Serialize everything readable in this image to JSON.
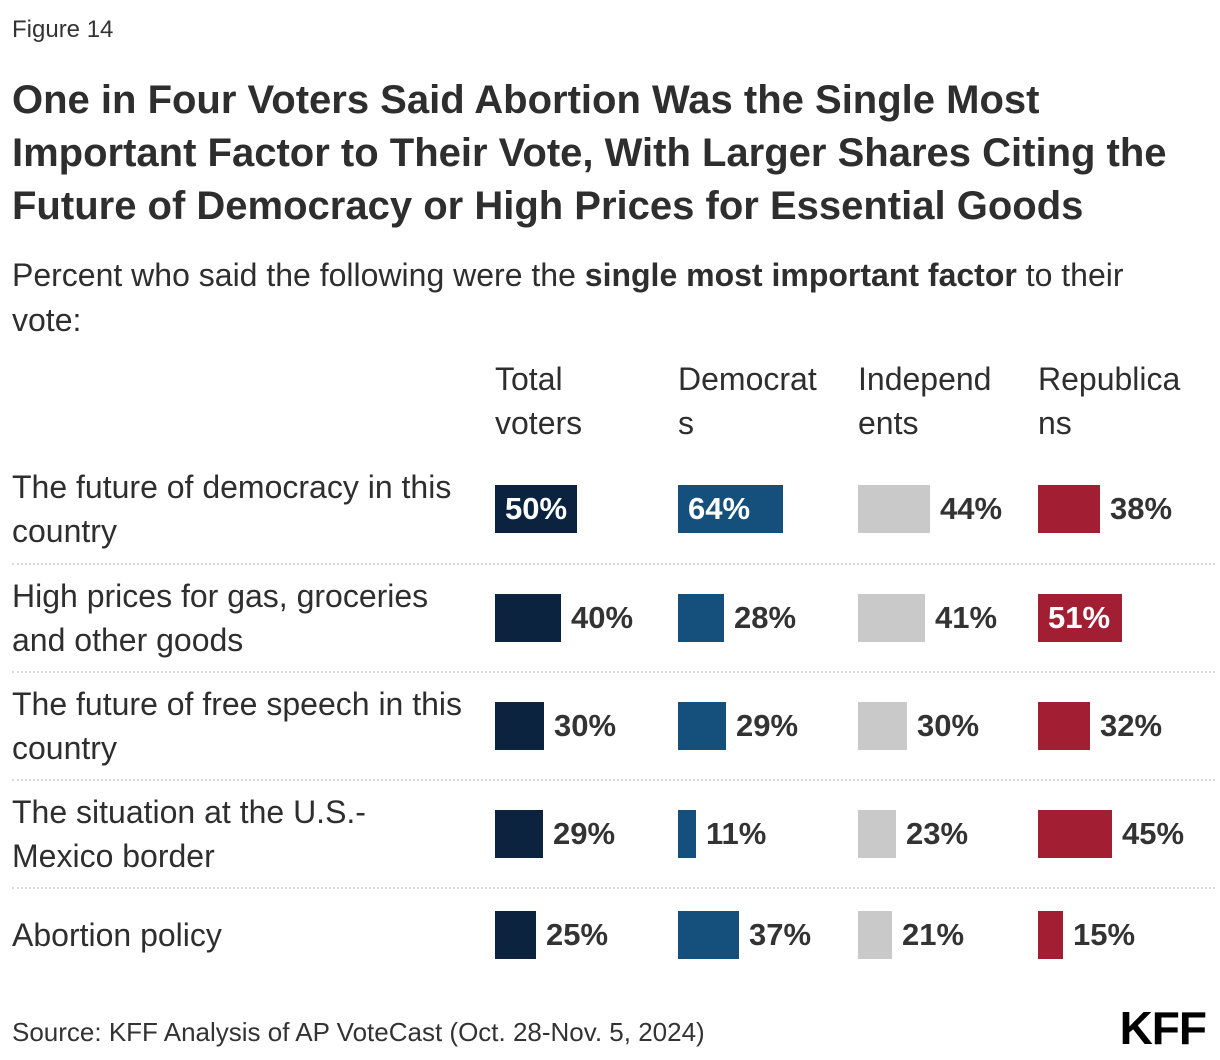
{
  "figure_label": "Figure 14",
  "title": "One in Four Voters Said Abortion Was the Single Most Important Factor to Their Vote, With Larger Shares Citing the Future of Democracy or High Prices for Essential Goods",
  "subtitle": {
    "prefix": "Percent who said the following were the ",
    "bold": "single most important factor",
    "suffix": " to their vote:"
  },
  "source": "Source: KFF Analysis of AP VoteCast (Oct. 28-Nov. 5, 2024)",
  "logo_text": "KFF",
  "chart_data": {
    "type": "bar",
    "orientation": "horizontal",
    "value_suffix": "%",
    "xlim": [
      0,
      100
    ],
    "grid": false,
    "legend_position": "column-headers",
    "categories": [
      "The future of democracy in this country",
      "High prices for gas, groceries and other goods",
      "The future of free speech in this country",
      "The situation at the U.S.-Mexico border",
      "Abortion policy"
    ],
    "series": [
      {
        "name": "Total voters",
        "color": "#0c2340",
        "values": [
          50,
          40,
          30,
          29,
          25
        ]
      },
      {
        "name": "Democrats",
        "color": "#15507d",
        "values": [
          64,
          28,
          29,
          11,
          37
        ]
      },
      {
        "name": "Independents",
        "color": "#c9c9c9",
        "values": [
          44,
          41,
          30,
          23,
          21
        ]
      },
      {
        "name": "Republicans",
        "color": "#a21f33",
        "values": [
          38,
          51,
          32,
          45,
          15
        ]
      }
    ],
    "inside_label_threshold": 50,
    "inside_label_color": "#ffffff",
    "outside_label_color": "#333333"
  }
}
